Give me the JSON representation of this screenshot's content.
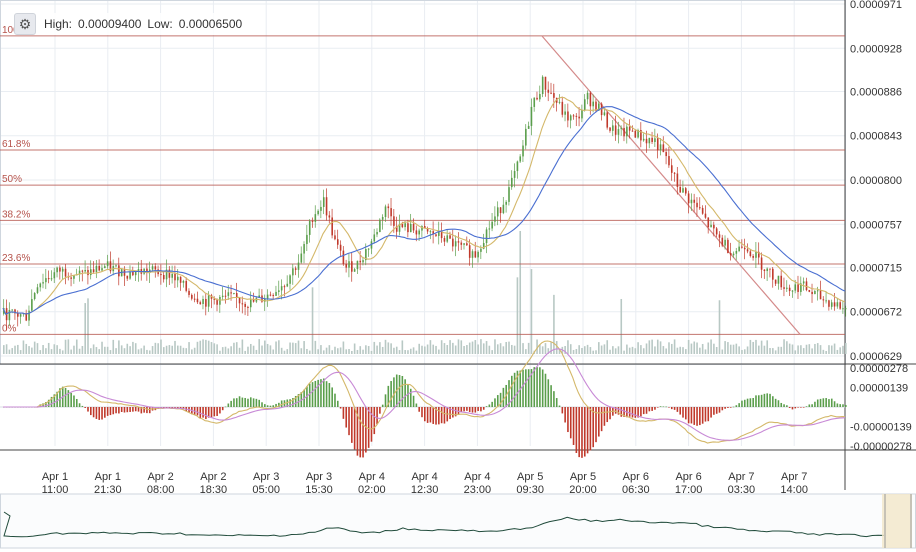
{
  "header": {
    "high_label": "High:",
    "high_value": "0.00009400",
    "low_label": "Low:",
    "low_value": "0.00006500",
    "settings_icon": "gear-icon"
  },
  "chart_data": [
    {
      "type": "candlestick",
      "title": "",
      "y_ticks": [
        "0.0000971",
        "0.0000928",
        "0.0000886",
        "0.0000843",
        "0.0000800",
        "0.0000757",
        "0.0000715",
        "0.0000672",
        "0.0000629"
      ],
      "ylim": [
        6.29e-05,
        9.71e-05
      ],
      "x_ticks": [
        [
          "Apr 1",
          "11:00"
        ],
        [
          "Apr 1",
          "21:30"
        ],
        [
          "Apr 2",
          "08:00"
        ],
        [
          "Apr 2",
          "18:30"
        ],
        [
          "Apr 3",
          "05:00"
        ],
        [
          "Apr 3",
          "15:30"
        ],
        [
          "Apr 4",
          "02:00"
        ],
        [
          "Apr 4",
          "12:30"
        ],
        [
          "Apr 4",
          "23:00"
        ],
        [
          "Apr 5",
          "09:30"
        ],
        [
          "Apr 5",
          "20:00"
        ],
        [
          "Apr 6",
          "06:30"
        ],
        [
          "Apr 6",
          "17:00"
        ],
        [
          "Apr 7",
          "03:30"
        ],
        [
          "Apr 7",
          "14:00"
        ]
      ],
      "fibonacci": [
        {
          "label": "100%",
          "value": 9.4e-05
        },
        {
          "label": "61.8%",
          "value": 8.292e-05
        },
        {
          "label": "50%",
          "value": 7.95e-05
        },
        {
          "label": "38.2%",
          "value": 7.608e-05
        },
        {
          "label": "23.6%",
          "value": 7.184e-05
        },
        {
          "label": "0%",
          "value": 6.5e-05
        }
      ],
      "trendline": {
        "from": [
          "Apr 5 09:30",
          9.4e-05
        ],
        "to": [
          "Apr 7 14:00",
          6.5e-05
        ]
      },
      "price_path": [
        [
          0,
          6.7e-05
        ],
        [
          4,
          6.68e-05
        ],
        [
          6,
          7e-05
        ],
        [
          10,
          7.12e-05
        ],
        [
          14,
          7.08e-05
        ],
        [
          18,
          7.16e-05
        ],
        [
          22,
          7.1e-05
        ],
        [
          26,
          7.12e-05
        ],
        [
          30,
          7.08e-05
        ],
        [
          33,
          6.9e-05
        ],
        [
          36,
          6.82e-05
        ],
        [
          40,
          6.86e-05
        ],
        [
          44,
          6.8e-05
        ],
        [
          47,
          6.88e-05
        ],
        [
          50,
          7e-05
        ],
        [
          53,
          7.25e-05
        ],
        [
          55,
          7.65e-05
        ],
        [
          57,
          7.8e-05
        ],
        [
          59,
          7.4e-05
        ],
        [
          61,
          7.15e-05
        ],
        [
          63,
          7.18e-05
        ],
        [
          66,
          7.45e-05
        ],
        [
          68,
          7.75e-05
        ],
        [
          70,
          7.55e-05
        ],
        [
          73,
          7.52e-05
        ],
        [
          76,
          7.48e-05
        ],
        [
          78,
          7.45e-05
        ],
        [
          81,
          7.35e-05
        ],
        [
          84,
          7.28e-05
        ],
        [
          86,
          7.5e-05
        ],
        [
          88,
          7.68e-05
        ],
        [
          90,
          7.9e-05
        ],
        [
          92,
          8.2e-05
        ],
        [
          94,
          8.7e-05
        ],
        [
          96,
          8.95e-05
        ],
        [
          98,
          8.8e-05
        ],
        [
          100,
          8.62e-05
        ],
        [
          102,
          8.58e-05
        ],
        [
          104,
          8.8e-05
        ],
        [
          106,
          8.7e-05
        ],
        [
          108,
          8.5e-05
        ],
        [
          110,
          8.45e-05
        ],
        [
          112,
          8.48e-05
        ],
        [
          114,
          8.4e-05
        ],
        [
          116,
          8.38e-05
        ],
        [
          118,
          8.2e-05
        ],
        [
          120,
          7.95e-05
        ],
        [
          122,
          7.82e-05
        ],
        [
          124,
          7.7e-05
        ],
        [
          126,
          7.52e-05
        ],
        [
          128,
          7.4e-05
        ],
        [
          130,
          7.3e-05
        ],
        [
          132,
          7.38e-05
        ],
        [
          134,
          7.25e-05
        ],
        [
          136,
          7.12e-05
        ],
        [
          138,
          7.02e-05
        ],
        [
          140,
          6.94e-05
        ],
        [
          142,
          6.98e-05
        ],
        [
          144,
          6.9e-05
        ],
        [
          146,
          6.84e-05
        ],
        [
          148,
          6.8e-05
        ],
        [
          150,
          6.74e-05
        ]
      ],
      "volume_spikes": [
        [
          15,
          0.55
        ],
        [
          55,
          0.55
        ],
        [
          92,
          0.95
        ],
        [
          94,
          0.9
        ],
        [
          96,
          0.75
        ],
        [
          98,
          0.6
        ],
        [
          110,
          0.45
        ],
        [
          118,
          0.65
        ],
        [
          128,
          0.5
        ],
        [
          136,
          0.6
        ],
        [
          142,
          0.45
        ],
        [
          148,
          0.4
        ]
      ]
    },
    {
      "type": "histogram",
      "title": "",
      "y_ticks": [
        "0.00000278",
        "0.00000139",
        "-0.00000139",
        "-0.00000278"
      ],
      "ylim": [
        -2.78e-06,
        2.78e-06
      ]
    }
  ],
  "colors": {
    "up": "#5a9e4b",
    "down": "#c0392b",
    "fib": "#b5524b",
    "ma_fast": "#d4b86a",
    "ma_slow": "#4a6fd1",
    "macd": "#d4b86a",
    "signal": "#c88ad6",
    "volume": "#b8c8c4",
    "grid": "#e9edf2",
    "navigator": "#1f4a3a"
  }
}
